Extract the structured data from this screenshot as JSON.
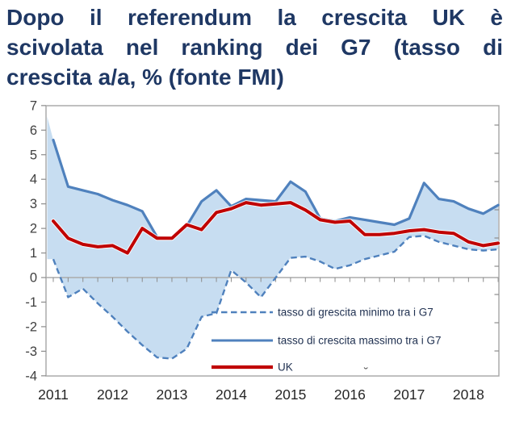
{
  "title": {
    "lines": [
      "Dopo il referendum la crescita UK è",
      "scivolata nel ranking dei G7 (tasso di",
      "crescita a/a, % (fonte FMI)"
    ],
    "color": "#1f3864"
  },
  "decorations": {
    "stray_mark": "˘"
  },
  "chart_data": {
    "type": "line",
    "x_unit": "quarterly",
    "x_start": "2011Q1",
    "x_end": "2018Q3",
    "x_tick_labels": [
      "2011",
      "2012",
      "2013",
      "2014",
      "2015",
      "2016",
      "2017",
      "2018"
    ],
    "y_ticks": [
      7,
      6,
      5,
      4,
      3,
      2,
      1,
      0,
      -1,
      -2,
      -3,
      -4
    ],
    "ylim": [
      -4,
      7
    ],
    "grid": "zero-line-only",
    "legend_position": "inside-bottom-right",
    "band_fill_color": "#c7ddf1",
    "axis_color": "#a6a6a6",
    "zero_line_color": "#ababab",
    "tick_color": "#8c8c8c",
    "y_label_color": "#404040",
    "x_label_color": "#262626",
    "legend_text_color": "#1f3050",
    "series": [
      {
        "name": "tasso di grescita minimo tra i G7",
        "style": "dashed",
        "color": "#4f81bd",
        "role": "band-min",
        "values": [
          0.75,
          -0.8,
          -0.45,
          -1.05,
          -1.6,
          -2.2,
          -2.75,
          -3.25,
          -3.3,
          -2.9,
          -1.6,
          -1.45,
          0.3,
          -0.2,
          -0.8,
          0.0,
          0.8,
          0.85,
          0.65,
          0.35,
          0.5,
          0.75,
          0.9,
          1.05,
          1.65,
          1.7,
          1.45,
          1.3,
          1.15,
          1.1,
          1.15
        ]
      },
      {
        "name": "tasso di crescita massimo tra i G7",
        "style": "solid",
        "color": "#4f81bd",
        "role": "band-max",
        "values": [
          5.6,
          3.7,
          3.55,
          3.4,
          3.15,
          2.95,
          2.7,
          1.65,
          1.6,
          2.1,
          3.1,
          3.55,
          2.9,
          3.2,
          3.15,
          3.1,
          3.9,
          3.5,
          2.4,
          2.3,
          2.45,
          2.35,
          2.25,
          2.15,
          2.4,
          3.85,
          3.2,
          3.1,
          2.8,
          2.6,
          2.95
        ]
      },
      {
        "name": "UK",
        "style": "solid-thick",
        "color": "#c00000",
        "role": "highlight",
        "values": [
          2.3,
          1.6,
          1.35,
          1.25,
          1.3,
          1.0,
          2.0,
          1.6,
          1.6,
          2.15,
          1.95,
          2.65,
          2.8,
          3.05,
          2.95,
          3.0,
          3.05,
          2.75,
          2.35,
          2.25,
          2.3,
          1.75,
          1.75,
          1.8,
          1.9,
          1.95,
          1.85,
          1.8,
          1.45,
          1.3,
          1.4
        ]
      }
    ]
  }
}
